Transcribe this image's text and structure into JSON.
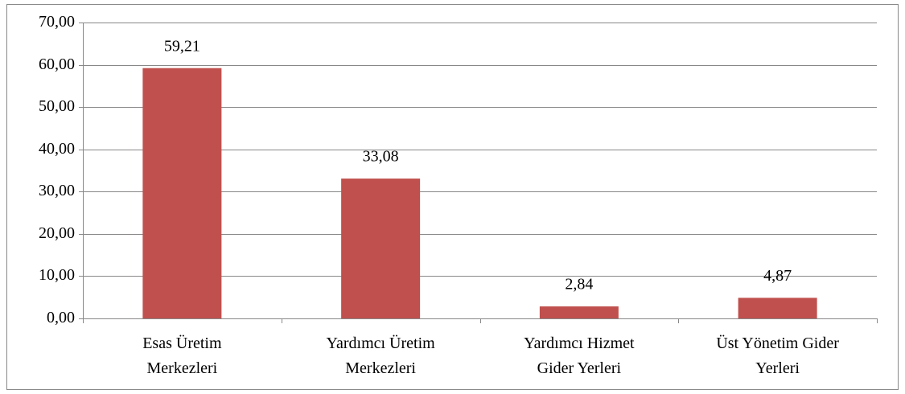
{
  "chart_data": {
    "type": "bar",
    "categories": [
      "Esas Üretim Merkezleri",
      "Yardımcı Üretim Merkezleri",
      "Yardımcı Hizmet Gider Yerleri",
      "Üst Yönetim Gider Yerleri"
    ],
    "values": [
      59.21,
      33.08,
      2.84,
      4.87
    ],
    "value_labels": [
      "59,21",
      "33,08",
      "2,84",
      "4,87"
    ],
    "color": "#c0504d",
    "ylim": [
      0,
      70
    ],
    "yticks": [
      {
        "value": 0,
        "label": "0,00"
      },
      {
        "value": 10,
        "label": "10,00"
      },
      {
        "value": 20,
        "label": "20,00"
      },
      {
        "value": 30,
        "label": "30,00"
      },
      {
        "value": 40,
        "label": "40,00"
      },
      {
        "value": 50,
        "label": "50,00"
      },
      {
        "value": 60,
        "label": "60,00"
      },
      {
        "value": 70,
        "label": "70,00"
      }
    ],
    "grid": true
  }
}
